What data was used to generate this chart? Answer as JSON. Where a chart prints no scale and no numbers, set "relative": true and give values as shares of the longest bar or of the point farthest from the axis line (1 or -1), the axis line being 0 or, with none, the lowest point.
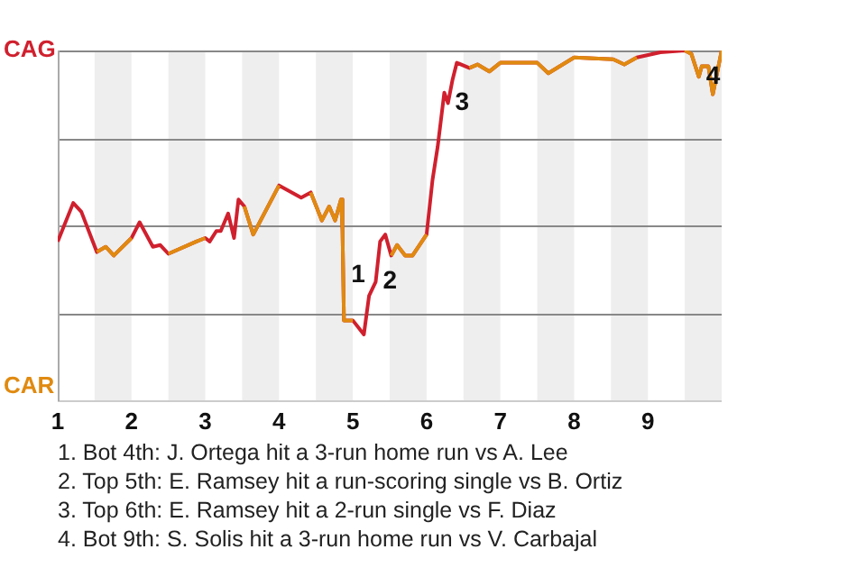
{
  "chart_data": {
    "type": "line",
    "relative": true,
    "x": [
      1,
      1.21,
      1.32,
      1.53,
      1.65,
      1.76,
      2,
      2.11,
      2.29,
      2.39,
      2.5,
      2.88,
      3,
      3.06,
      3.15,
      3.21,
      3.31,
      3.39,
      3.45,
      3.53,
      3.65,
      4,
      4.3,
      4.43,
      4.58,
      4.68,
      4.76,
      4.84,
      4.86,
      4.88,
      5,
      5.15,
      5.22,
      5.31,
      5.37,
      5.44,
      5.52,
      5.6,
      5.71,
      5.81,
      6,
      6.08,
      6.15,
      6.24,
      6.29,
      6.35,
      6.41,
      6.58,
      6.69,
      6.85,
      7,
      7.5,
      7.65,
      8,
      8.53,
      8.68,
      8.85,
      9.17,
      9.5,
      9.59,
      9.69,
      9.73,
      9.82,
      9.88,
      10
    ],
    "series": [
      {
        "color": "#d0202e",
        "values": [
          0.455,
          0.565,
          0.54,
          0.425,
          0.44,
          0.415,
          0.465,
          0.51,
          0.44,
          0.445,
          0.42,
          0.455,
          0.465,
          0.455,
          0.485,
          0.485,
          0.535,
          0.465,
          0.575,
          0.555,
          0.475,
          0.615,
          0.58,
          0.595,
          0.515,
          0.555,
          0.515,
          0.575,
          0.49,
          0.23,
          0.23,
          0.19,
          0.3,
          0.34,
          0.455,
          0.475,
          0.415,
          0.445,
          0.415,
          0.415,
          0.475,
          0.63,
          0.725,
          0.88,
          0.85,
          0.915,
          0.965,
          0.95,
          0.96,
          0.94,
          0.965,
          0.965,
          0.935,
          0.98,
          0.975,
          0.96,
          0.98,
          0.995,
          1.0,
          0.99,
          0.925,
          0.955,
          0.955,
          0.875,
          1.0
        ]
      },
      {
        "color": "#e08a10",
        "values": [
          null,
          null,
          null,
          0.425,
          0.44,
          0.415,
          0.465,
          null,
          null,
          null,
          0.42,
          0.455,
          0.465,
          null,
          null,
          null,
          null,
          null,
          null,
          0.555,
          0.475,
          0.615,
          null,
          0.595,
          0.515,
          0.555,
          0.515,
          0.575,
          0.49,
          0.23,
          0.23,
          null,
          null,
          null,
          null,
          null,
          0.415,
          0.445,
          0.415,
          0.415,
          0.475,
          null,
          null,
          null,
          null,
          null,
          null,
          0.95,
          0.96,
          0.94,
          0.965,
          0.965,
          0.935,
          0.98,
          0.975,
          0.96,
          0.98,
          null,
          1.0,
          0.99,
          0.925,
          0.955,
          0.955,
          0.875,
          1.0
        ]
      }
    ],
    "xlim": [
      1,
      10
    ],
    "xticks": [
      1,
      2,
      3,
      4,
      5,
      6,
      7,
      8,
      9
    ],
    "grid": "y",
    "marker": "none",
    "line_style": "solid",
    "legend": false,
    "bands": [
      {
        "axis": "x",
        "from": 1.5,
        "to": 2,
        "color": "#eeeeee"
      },
      {
        "axis": "x",
        "from": 2.5,
        "to": 3,
        "color": "#eeeeee"
      },
      {
        "axis": "x",
        "from": 3.5,
        "to": 4,
        "color": "#eeeeee"
      },
      {
        "axis": "x",
        "from": 4.5,
        "to": 5,
        "color": "#eeeeee"
      },
      {
        "axis": "x",
        "from": 5.5,
        "to": 6,
        "color": "#eeeeee"
      },
      {
        "axis": "x",
        "from": 6.5,
        "to": 7,
        "color": "#eeeeee"
      },
      {
        "axis": "x",
        "from": 7.5,
        "to": 8,
        "color": "#eeeeee"
      },
      {
        "axis": "x",
        "from": 8.5,
        "to": 9,
        "color": "#eeeeee"
      },
      {
        "axis": "x",
        "from": 9.5,
        "to": 10,
        "color": "#eeeeee"
      }
    ],
    "annotations": [
      {
        "text": "1",
        "x": 4.88,
        "y": 0.36
      },
      {
        "text": "2",
        "x": 5.31,
        "y": 0.34
      },
      {
        "text": "3",
        "x": 6.29,
        "y": 0.85
      },
      {
        "text": "4",
        "x": 9.69,
        "y": 0.925
      },
      "CAG",
      "CAR",
      "1. Bot 4th: J. Ortega hit a 3-run home run vs A. Lee",
      "2. Top 5th: E. Ramsey hit a run-scoring single vs B. Ortiz",
      "3. Top 6th: E. Ramsey hit a 2-run single vs F. Diaz",
      "4. Bot 9th: S. Solis hit a 3-run home run vs V. Carbajal"
    ]
  }
}
